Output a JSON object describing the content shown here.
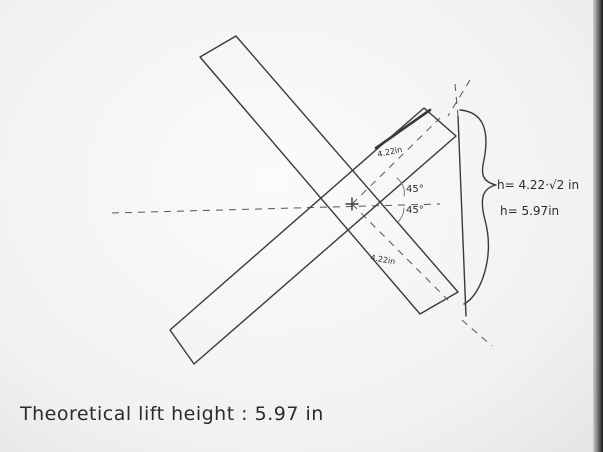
{
  "diagram": {
    "labels": {
      "side_top": "4.22in",
      "side_bottom": "4.22in",
      "angle_upper": "45°",
      "angle_lower": "45°",
      "height_formula": "h= 4.22·√2 in",
      "height_value": "h= 5.97in"
    },
    "caption": "Theoretical lift height : 5.97 in"
  }
}
